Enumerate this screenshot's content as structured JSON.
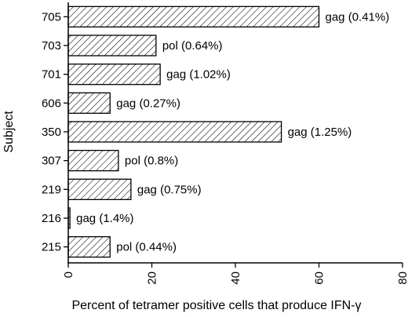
{
  "chart_data": {
    "type": "bar",
    "orientation": "horizontal",
    "title": "",
    "xlabel": "Percent of tetramer positive cells that produce IFN-γ",
    "ylabel": "Subject",
    "xlim": [
      0,
      80
    ],
    "xticks": [
      "0",
      "20",
      "40",
      "60",
      "80"
    ],
    "grid": false,
    "bar_fill": "diagonal-hatch",
    "categories": [
      "705",
      "703",
      "701",
      "606",
      "350",
      "307",
      "219",
      "216",
      "215"
    ],
    "values": [
      60,
      21,
      22,
      10,
      51,
      12,
      15,
      0.4,
      10
    ],
    "bar_labels": [
      "gag (0.41%)",
      "pol (0.64%)",
      "gag (1.02%)",
      "gag (0.27%)",
      "gag (1.25%)",
      "pol (0.8%)",
      "gag (0.75%)",
      "gag (1.4%)",
      "pol (0.44%)"
    ]
  }
}
